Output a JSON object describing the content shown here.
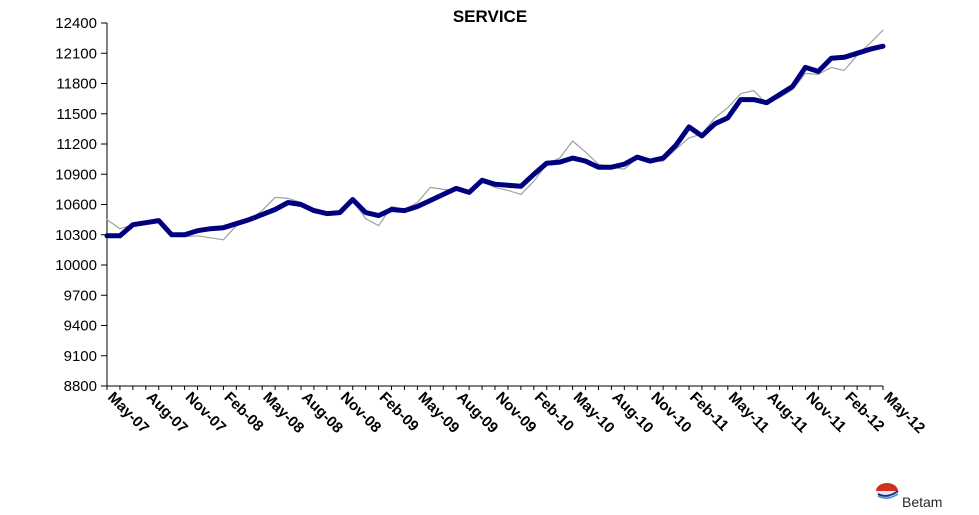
{
  "chart_data": {
    "type": "line",
    "title": "SERVICE",
    "xlabel": "",
    "ylabel": "",
    "ylim": [
      8800,
      12400
    ],
    "yticks": [
      8800,
      9100,
      9400,
      9700,
      10000,
      10300,
      10600,
      10900,
      11200,
      11500,
      11800,
      12100,
      12400
    ],
    "xtick_labels": [
      "May-07",
      "Aug-07",
      "Nov-07",
      "Feb-08",
      "May-08",
      "Aug-08",
      "Nov-08",
      "Feb-09",
      "May-09",
      "Aug-09",
      "Nov-09",
      "Feb-10",
      "May-10",
      "Aug-10",
      "Nov-10",
      "Feb-11",
      "May-11",
      "Aug-11",
      "Nov-11",
      "Feb-12",
      "May-12"
    ],
    "x": [
      "May-07",
      "Jun-07",
      "Jul-07",
      "Aug-07",
      "Sep-07",
      "Oct-07",
      "Nov-07",
      "Dec-07",
      "Jan-08",
      "Feb-08",
      "Mar-08",
      "Apr-08",
      "May-08",
      "Jun-08",
      "Jul-08",
      "Aug-08",
      "Sep-08",
      "Oct-08",
      "Nov-08",
      "Dec-08",
      "Jan-09",
      "Feb-09",
      "Mar-09",
      "Apr-09",
      "May-09",
      "Jun-09",
      "Jul-09",
      "Aug-09",
      "Sep-09",
      "Oct-09",
      "Nov-09",
      "Dec-09",
      "Jan-10",
      "Feb-10",
      "Mar-10",
      "Apr-10",
      "May-10",
      "Jun-10",
      "Jul-10",
      "Aug-10",
      "Sep-10",
      "Oct-10",
      "Nov-10",
      "Dec-10",
      "Jan-11",
      "Feb-11",
      "Mar-11",
      "Apr-11",
      "May-11",
      "Jun-11",
      "Jul-11",
      "Aug-11",
      "Sep-11",
      "Oct-11",
      "Nov-11",
      "Dec-11",
      "Jan-12",
      "Feb-12",
      "Mar-12",
      "Apr-12",
      "May-12"
    ],
    "series": [
      {
        "color": "#a0a0a0",
        "values": [
          10450,
          10360,
          10400,
          10420,
          10440,
          10300,
          10280,
          10290,
          10270,
          10250,
          10390,
          10450,
          10540,
          10670,
          10660,
          10620,
          10560,
          10520,
          10520,
          10640,
          10460,
          10390,
          10580,
          10550,
          10620,
          10770,
          10750,
          10740,
          10720,
          10830,
          10770,
          10740,
          10700,
          10830,
          11000,
          11060,
          11230,
          11120,
          11000,
          10970,
          10950,
          11060,
          11030,
          11030,
          11150,
          11260,
          11300,
          11460,
          11560,
          11700,
          11730,
          11600,
          11660,
          11740,
          11900,
          11890,
          11960,
          11930,
          12080,
          12200,
          12330
        ]
      },
      {
        "color": "#00007f",
        "values": [
          10290,
          10290,
          10400,
          10420,
          10440,
          10300,
          10300,
          10340,
          10360,
          10370,
          10410,
          10450,
          10500,
          10550,
          10620,
          10600,
          10540,
          10510,
          10520,
          10650,
          10520,
          10490,
          10550,
          10540,
          10580,
          10640,
          10700,
          10760,
          10720,
          10840,
          10800,
          10790,
          10780,
          10900,
          11010,
          11020,
          11060,
          11030,
          10970,
          10970,
          11000,
          11070,
          11030,
          11060,
          11190,
          11370,
          11280,
          11400,
          11460,
          11640,
          11640,
          11610,
          11690,
          11770,
          11960,
          11920,
          12050,
          12060,
          12100,
          12140,
          12170
        ]
      }
    ],
    "grid": false,
    "legend": "none"
  },
  "watermark": {
    "logo_text": "Betam"
  }
}
